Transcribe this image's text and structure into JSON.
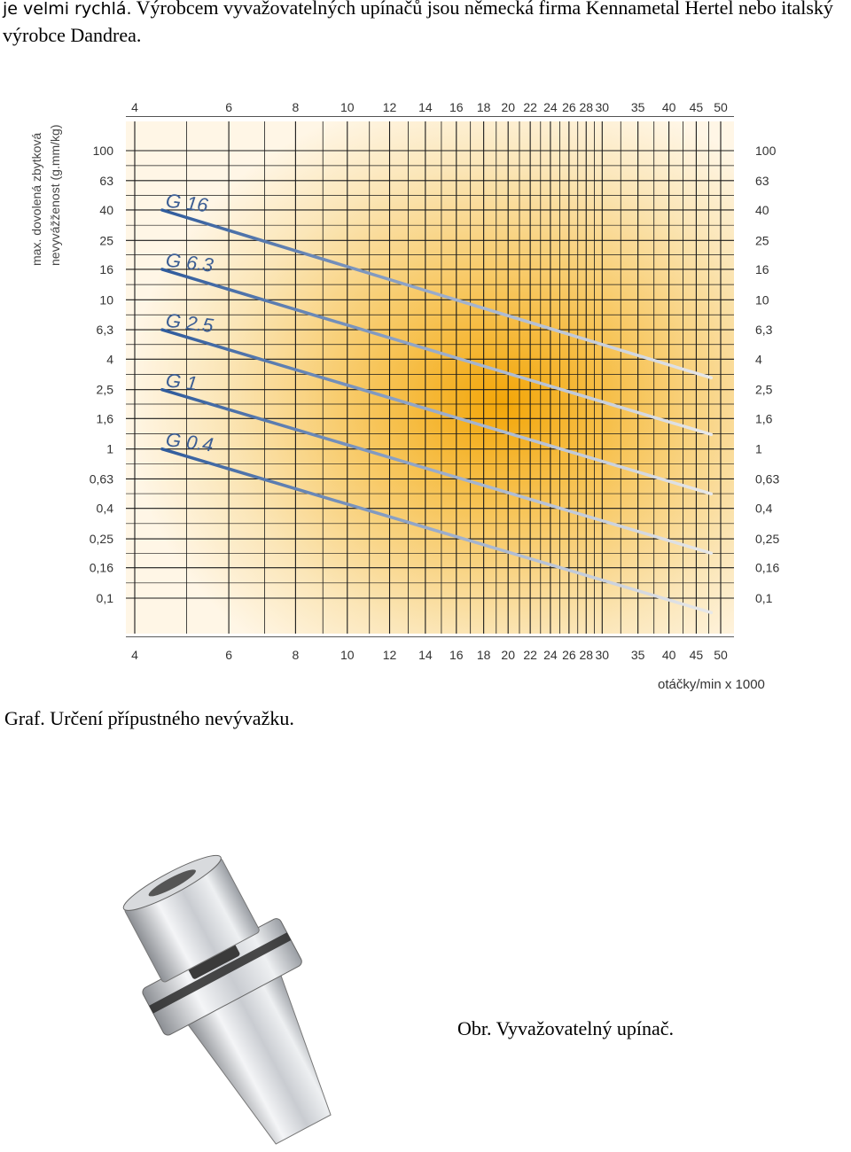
{
  "text": {
    "intro_prefix": "je velmi rychlá.",
    "intro_rest": " Výrobcem vyvažovatelných upínačů jsou německá firma Kennametal Hertel nebo italský výrobce Dandrea.",
    "figure_caption": "Graf. Určení přípustného nevývažku.",
    "photo_caption": "Obr. Vyvažovatelný upínač."
  },
  "chart_data": {
    "type": "line",
    "ylabel_line1": "max. dovolená zbytková",
    "ylabel_line2": "nevyvážženost (g.mm/kg)",
    "xlabel": "otáčky/min x 1000",
    "x_scale": "log",
    "y_scale": "log",
    "xlim": [
      4,
      50
    ],
    "ylim": [
      0.063,
      160
    ],
    "x_ticks": [
      4,
      6,
      8,
      10,
      12,
      14,
      16,
      18,
      20,
      22,
      24,
      26,
      28,
      30,
      35,
      40,
      45,
      50
    ],
    "y_ticks_left": [
      "100",
      "63",
      "40",
      "25",
      "16",
      "10",
      "6,3",
      "4",
      "2,5",
      "1,6",
      "1",
      "0,63",
      "0,4",
      "0,25",
      "0,16",
      "0,1"
    ],
    "y_ticks_right": [
      "100",
      "63",
      "40",
      "25",
      "16",
      "10",
      "6,3",
      "4",
      "2,5",
      "1,6",
      "1",
      "0,63",
      "0,4",
      "0,25",
      "0,16",
      "0,1"
    ],
    "y_tick_values": [
      100,
      63,
      40,
      25,
      16,
      10,
      6.3,
      4,
      2.5,
      1.6,
      1,
      0.63,
      0.4,
      0.25,
      0.16,
      0.1
    ],
    "series": [
      {
        "name": "G 16",
        "x": [
          4.5,
          48
        ],
        "y": [
          40,
          3.0
        ]
      },
      {
        "name": "G 6.3",
        "x": [
          4.5,
          48
        ],
        "y": [
          16,
          1.25
        ]
      },
      {
        "name": "G 2.5",
        "x": [
          4.5,
          48
        ],
        "y": [
          6.3,
          0.5
        ]
      },
      {
        "name": "G 1",
        "x": [
          4.5,
          48
        ],
        "y": [
          2.5,
          0.2
        ]
      },
      {
        "name": "G 0.4",
        "x": [
          4.5,
          48
        ],
        "y": [
          1.0,
          0.08
        ]
      }
    ],
    "grid": true,
    "line_color_start": "#2f5b9c",
    "line_color_end": "#e8e8e8",
    "background_center": "#f5b21a"
  },
  "image": {
    "icon": "tool-holder-image"
  }
}
